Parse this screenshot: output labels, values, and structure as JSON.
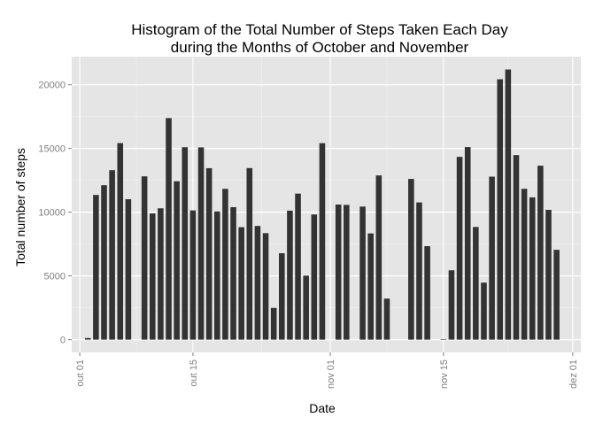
{
  "chart_data": {
    "type": "bar",
    "title": [
      "Histogram of the Total Number of Steps Taken Each Day",
      "during the Months of October and November"
    ],
    "xlabel": "Date",
    "ylabel": "Total number of steps",
    "ylim": [
      -1000,
      22200
    ],
    "y_ticks": [
      0,
      5000,
      10000,
      15000,
      20000
    ],
    "x_range": [
      "2012-09-30",
      "2012-12-02"
    ],
    "x_ticks": [
      {
        "date": "2012-10-01",
        "label": "out 01"
      },
      {
        "date": "2012-10-15",
        "label": "out 15"
      },
      {
        "date": "2012-11-01",
        "label": "nov 01"
      },
      {
        "date": "2012-11-15",
        "label": "nov 15"
      },
      {
        "date": "2012-12-01",
        "label": "dez 01"
      }
    ],
    "grid": true,
    "bar_color": "#333333",
    "background_color": "#e5e5e5",
    "grid_color": "#ffffff",
    "x": [
      "2012-10-01",
      "2012-10-02",
      "2012-10-03",
      "2012-10-04",
      "2012-10-05",
      "2012-10-06",
      "2012-10-07",
      "2012-10-08",
      "2012-10-09",
      "2012-10-10",
      "2012-10-11",
      "2012-10-12",
      "2012-10-13",
      "2012-10-14",
      "2012-10-15",
      "2012-10-16",
      "2012-10-17",
      "2012-10-18",
      "2012-10-19",
      "2012-10-20",
      "2012-10-21",
      "2012-10-22",
      "2012-10-23",
      "2012-10-24",
      "2012-10-25",
      "2012-10-26",
      "2012-10-27",
      "2012-10-28",
      "2012-10-29",
      "2012-10-30",
      "2012-10-31",
      "2012-11-01",
      "2012-11-02",
      "2012-11-03",
      "2012-11-04",
      "2012-11-05",
      "2012-11-06",
      "2012-11-07",
      "2012-11-08",
      "2012-11-09",
      "2012-11-10",
      "2012-11-11",
      "2012-11-12",
      "2012-11-13",
      "2012-11-14",
      "2012-11-15",
      "2012-11-16",
      "2012-11-17",
      "2012-11-18",
      "2012-11-19",
      "2012-11-20",
      "2012-11-21",
      "2012-11-22",
      "2012-11-23",
      "2012-11-24",
      "2012-11-25",
      "2012-11-26",
      "2012-11-27",
      "2012-11-28",
      "2012-11-29",
      "2012-11-30"
    ],
    "values": [
      0,
      126,
      11352,
      12116,
      13294,
      15420,
      11015,
      0,
      12811,
      9900,
      10304,
      17382,
      12426,
      15098,
      10139,
      15084,
      13452,
      10056,
      11829,
      10395,
      8821,
      13460,
      8918,
      8355,
      2492,
      6778,
      10119,
      11458,
      5018,
      9819,
      15414,
      0,
      10600,
      10571,
      0,
      10439,
      8334,
      12883,
      3219,
      0,
      0,
      12608,
      10765,
      7336,
      0,
      41,
      5441,
      14339,
      15110,
      8841,
      4472,
      12787,
      20427,
      21194,
      14478,
      11834,
      11162,
      13646,
      10183,
      7047,
      0
    ]
  }
}
